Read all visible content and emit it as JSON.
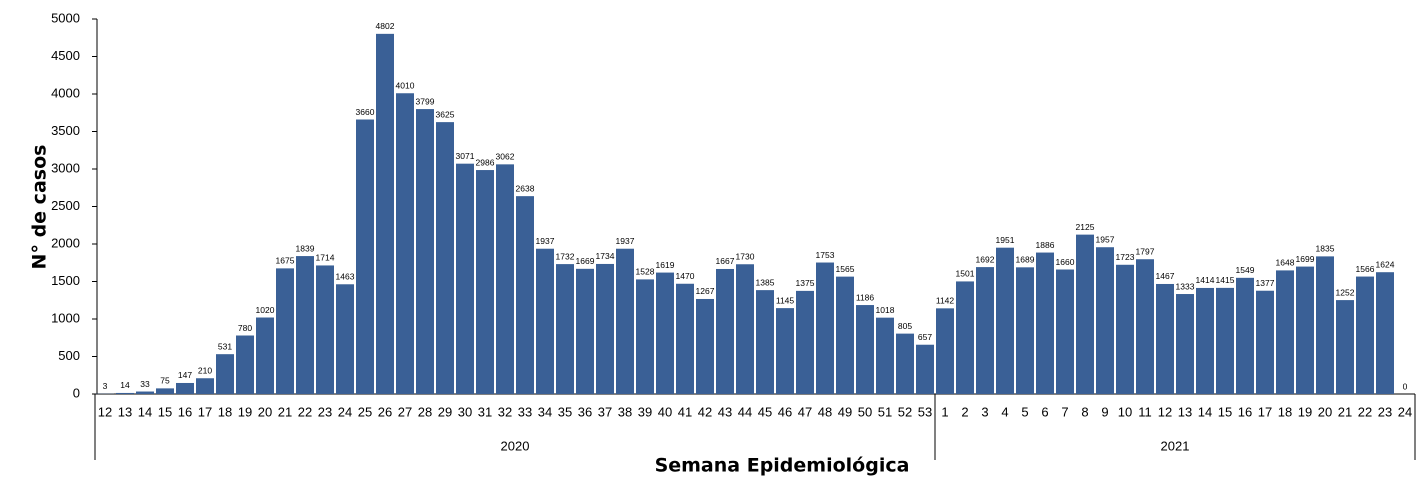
{
  "chart_data": {
    "type": "bar",
    "color": "#3a6096",
    "x_label": "Semana Epidemiológica",
    "y_label": "N° de casos",
    "ylim": [
      0,
      5000
    ],
    "yticks": [
      0,
      500,
      1000,
      1500,
      2000,
      2500,
      3000,
      3500,
      4000,
      4500,
      5000
    ],
    "groups": [
      {
        "label": "2020",
        "categories": [
          "12",
          "13",
          "14",
          "15",
          "16",
          "17",
          "18",
          "19",
          "20",
          "21",
          "22",
          "23",
          "24",
          "25",
          "26",
          "27",
          "28",
          "29",
          "30",
          "31",
          "32",
          "33",
          "34",
          "35",
          "36",
          "37",
          "38",
          "39",
          "40",
          "41",
          "42",
          "43",
          "44",
          "45",
          "46",
          "47",
          "48",
          "49",
          "50",
          "51",
          "52",
          "53"
        ],
        "values": [
          3,
          14,
          33,
          75,
          147,
          210,
          531,
          780,
          1020,
          1675,
          1839,
          1714,
          1463,
          3660,
          4802,
          4010,
          3799,
          3625,
          3071,
          2986,
          3062,
          2638,
          1937,
          1732,
          1669,
          1734,
          1937,
          1528,
          1619,
          1470,
          1267,
          1667,
          1730,
          1385,
          1145,
          1375,
          1753,
          1565,
          1186,
          1018,
          805,
          657
        ]
      },
      {
        "label": "2021",
        "categories": [
          "1",
          "2",
          "3",
          "4",
          "5",
          "6",
          "7",
          "8",
          "9",
          "10",
          "11",
          "12",
          "13",
          "14",
          "15",
          "16",
          "17",
          "18",
          "19",
          "20",
          "21",
          "22",
          "23",
          "24"
        ],
        "values": [
          1142,
          1501,
          1692,
          1951,
          1689,
          1886,
          1660,
          2125,
          1957,
          1723,
          1797,
          1467,
          1333,
          1414,
          1415,
          1549,
          1377,
          1648,
          1699,
          1835,
          1252,
          1566,
          1624,
          0
        ]
      }
    ]
  }
}
